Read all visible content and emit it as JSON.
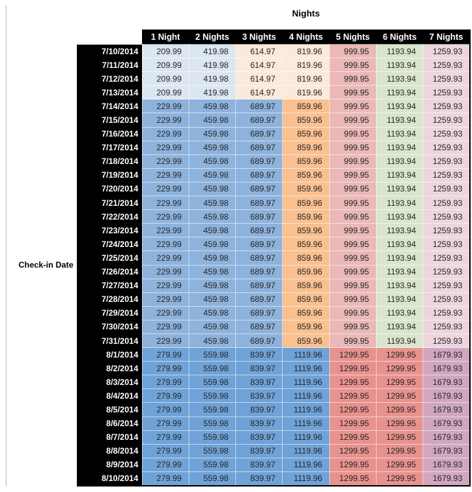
{
  "title": "Nights",
  "row_axis_label": "Check-in Date",
  "palette": {
    "blue_light": "#dce6f1",
    "blue_mid": "#8db3dd",
    "blue_dark": "#6fa3d7",
    "orange_light": "#fde9d9",
    "orange_mid": "#fac090",
    "red_light": "#eab8b7",
    "green_light": "#d9e6cd",
    "pink_light": "#ecd5dd",
    "red_mid": "#e8928e",
    "purple_mid": "#d0a6c0",
    "header_bg": "#000000",
    "header_text": "#ffffff",
    "value_text": "#262626",
    "left_rule": "#d9d9d9"
  },
  "section_colors": {
    "early_july": [
      "blue_light",
      "blue_light",
      "orange_light",
      "orange_light",
      "red_light",
      "green_light",
      "pink_light"
    ],
    "mid_july": [
      "blue_mid",
      "blue_mid",
      "blue_mid",
      "orange_mid",
      "red_light",
      "green_light",
      "pink_light"
    ],
    "august": [
      "blue_dark",
      "blue_dark",
      "blue_dark",
      "blue_dark",
      "red_mid",
      "red_mid",
      "purple_mid"
    ]
  },
  "chart_data": {
    "type": "table",
    "title": "Nights",
    "row_label": "Check-in Date",
    "columns": [
      "1 Night",
      "2 Nights",
      "3 Nights",
      "4 Nights",
      "5 Nights",
      "6 Nights",
      "7 Nights"
    ],
    "rows": [
      {
        "date": "7/10/2014",
        "section": "early_july",
        "values": [
          "209.99",
          "419.98",
          "614.97",
          "819.96",
          "999.95",
          "1193.94",
          "1259.93"
        ]
      },
      {
        "date": "7/11/2014",
        "section": "early_july",
        "values": [
          "209.99",
          "419.98",
          "614.97",
          "819.96",
          "999.95",
          "1193.94",
          "1259.93"
        ]
      },
      {
        "date": "7/12/2014",
        "section": "early_july",
        "values": [
          "209.99",
          "419.98",
          "614.97",
          "819.96",
          "999.95",
          "1193.94",
          "1259.93"
        ]
      },
      {
        "date": "7/13/2014",
        "section": "early_july",
        "values": [
          "209.99",
          "419.98",
          "614.97",
          "819.96",
          "999.95",
          "1193.94",
          "1259.93"
        ]
      },
      {
        "date": "7/14/2014",
        "section": "mid_july",
        "values": [
          "229.99",
          "459.98",
          "689.97",
          "859.96",
          "999.95",
          "1193.94",
          "1259.93"
        ]
      },
      {
        "date": "7/15/2014",
        "section": "mid_july",
        "values": [
          "229.99",
          "459.98",
          "689.97",
          "859.96",
          "999.95",
          "1193.94",
          "1259.93"
        ]
      },
      {
        "date": "7/16/2014",
        "section": "mid_july",
        "values": [
          "229.99",
          "459.98",
          "689.97",
          "859.96",
          "999.95",
          "1193.94",
          "1259.93"
        ]
      },
      {
        "date": "7/17/2014",
        "section": "mid_july",
        "values": [
          "229.99",
          "459.98",
          "689.97",
          "859.96",
          "999.95",
          "1193.94",
          "1259.93"
        ]
      },
      {
        "date": "7/18/2014",
        "section": "mid_july",
        "values": [
          "229.99",
          "459.98",
          "689.97",
          "859.96",
          "999.95",
          "1193.94",
          "1259.93"
        ]
      },
      {
        "date": "7/19/2014",
        "section": "mid_july",
        "values": [
          "229.99",
          "459.98",
          "689.97",
          "859.96",
          "999.95",
          "1193.94",
          "1259.93"
        ]
      },
      {
        "date": "7/20/2014",
        "section": "mid_july",
        "values": [
          "229.99",
          "459.98",
          "689.97",
          "859.96",
          "999.95",
          "1193.94",
          "1259.93"
        ]
      },
      {
        "date": "7/21/2014",
        "section": "mid_july",
        "values": [
          "229.99",
          "459.98",
          "689.97",
          "859.96",
          "999.95",
          "1193.94",
          "1259.93"
        ]
      },
      {
        "date": "7/22/2014",
        "section": "mid_july",
        "values": [
          "229.99",
          "459.98",
          "689.97",
          "859.96",
          "999.95",
          "1193.94",
          "1259.93"
        ]
      },
      {
        "date": "7/23/2014",
        "section": "mid_july",
        "values": [
          "229.99",
          "459.98",
          "689.97",
          "859.96",
          "999.95",
          "1193.94",
          "1259.93"
        ]
      },
      {
        "date": "7/24/2014",
        "section": "mid_july",
        "values": [
          "229.99",
          "459.98",
          "689.97",
          "859.96",
          "999.95",
          "1193.94",
          "1259.93"
        ]
      },
      {
        "date": "7/25/2014",
        "section": "mid_july",
        "values": [
          "229.99",
          "459.98",
          "689.97",
          "859.96",
          "999.95",
          "1193.94",
          "1259.93"
        ]
      },
      {
        "date": "7/26/2014",
        "section": "mid_july",
        "values": [
          "229.99",
          "459.98",
          "689.97",
          "859.96",
          "999.95",
          "1193.94",
          "1259.93"
        ]
      },
      {
        "date": "7/27/2014",
        "section": "mid_july",
        "values": [
          "229.99",
          "459.98",
          "689.97",
          "859.96",
          "999.95",
          "1193.94",
          "1259.93"
        ]
      },
      {
        "date": "7/28/2014",
        "section": "mid_july",
        "values": [
          "229.99",
          "459.98",
          "689.97",
          "859.96",
          "999.95",
          "1193.94",
          "1259.93"
        ]
      },
      {
        "date": "7/29/2014",
        "section": "mid_july",
        "values": [
          "229.99",
          "459.98",
          "689.97",
          "859.96",
          "999.95",
          "1193.94",
          "1259.93"
        ]
      },
      {
        "date": "7/30/2014",
        "section": "mid_july",
        "values": [
          "229.99",
          "459.98",
          "689.97",
          "859.96",
          "999.95",
          "1193.94",
          "1259.93"
        ]
      },
      {
        "date": "7/31/2014",
        "section": "mid_july",
        "values": [
          "229.99",
          "459.98",
          "689.97",
          "859.96",
          "999.95",
          "1193.94",
          "1259.93"
        ]
      },
      {
        "date": "8/1/2014",
        "section": "august",
        "values": [
          "279.99",
          "559.98",
          "839.97",
          "1119.96",
          "1299.95",
          "1299.95",
          "1679.93"
        ]
      },
      {
        "date": "8/2/2014",
        "section": "august",
        "values": [
          "279.99",
          "559.98",
          "839.97",
          "1119.96",
          "1299.95",
          "1299.95",
          "1679.93"
        ]
      },
      {
        "date": "8/3/2014",
        "section": "august",
        "values": [
          "279.99",
          "559.98",
          "839.97",
          "1119.96",
          "1299.95",
          "1299.95",
          "1679.93"
        ]
      },
      {
        "date": "8/4/2014",
        "section": "august",
        "values": [
          "279.99",
          "559.98",
          "839.97",
          "1119.96",
          "1299.95",
          "1299.95",
          "1679.93"
        ]
      },
      {
        "date": "8/5/2014",
        "section": "august",
        "values": [
          "279.99",
          "559.98",
          "839.97",
          "1119.96",
          "1299.95",
          "1299.95",
          "1679.93"
        ]
      },
      {
        "date": "8/6/2014",
        "section": "august",
        "values": [
          "279.99",
          "559.98",
          "839.97",
          "1119.96",
          "1299.95",
          "1299.95",
          "1679.93"
        ]
      },
      {
        "date": "8/7/2014",
        "section": "august",
        "values": [
          "279.99",
          "559.98",
          "839.97",
          "1119.96",
          "1299.95",
          "1299.95",
          "1679.93"
        ]
      },
      {
        "date": "8/8/2014",
        "section": "august",
        "values": [
          "279.99",
          "559.98",
          "839.97",
          "1119.96",
          "1299.95",
          "1299.95",
          "1679.93"
        ]
      },
      {
        "date": "8/9/2014",
        "section": "august",
        "values": [
          "279.99",
          "559.98",
          "839.97",
          "1119.96",
          "1299.95",
          "1299.95",
          "1679.93"
        ]
      },
      {
        "date": "8/10/2014",
        "section": "august",
        "values": [
          "279.99",
          "559.98",
          "839.97",
          "1119.96",
          "1299.95",
          "1299.95",
          "1679.93"
        ]
      }
    ]
  }
}
